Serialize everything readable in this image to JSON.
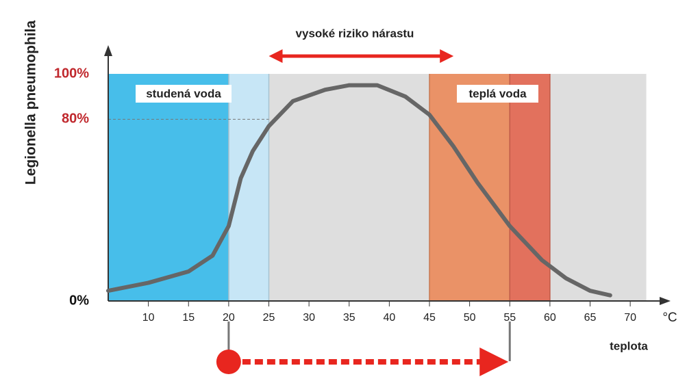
{
  "chart_data": {
    "type": "line",
    "title": "vysoké riziko nárastu",
    "y_label": "Legionella pneumophila",
    "x_label": "teplota",
    "x_unit": "°C",
    "x": [
      5,
      10,
      15,
      18,
      20,
      21.5,
      23,
      25,
      28,
      32,
      35,
      38.5,
      42,
      45,
      48,
      51,
      55,
      59,
      62,
      65,
      67.5
    ],
    "values": [
      4.5,
      8,
      13,
      20,
      33,
      54,
      66,
      77,
      88,
      93,
      95,
      95,
      90,
      82,
      68,
      52,
      33,
      18,
      10,
      4.5,
      2.5
    ],
    "color": "#666666",
    "xlim": [
      5,
      75
    ],
    "xticks": [
      10,
      15,
      20,
      25,
      30,
      35,
      40,
      45,
      50,
      55,
      60,
      65,
      70
    ],
    "ylim": [
      0,
      110
    ],
    "yticks": [
      {
        "value": 0,
        "label": "0%"
      },
      {
        "value": 80,
        "label": "80%"
      },
      {
        "value": 100,
        "label": "100%"
      }
    ],
    "ytick_colors": [
      "#111111",
      "#c0282d",
      "#c0282d"
    ],
    "reference_line": 80,
    "regions": [
      {
        "from": 25,
        "to": 72,
        "color": "#dcdcdc"
      },
      {
        "from": 5,
        "to": 20,
        "color": "#3dbbe9",
        "label": "studená voda"
      },
      {
        "from": 20,
        "to": 25,
        "color": "#c4e5f6"
      },
      {
        "from": 45,
        "to": 55,
        "color": "#ea8d60",
        "label": "teplá voda"
      },
      {
        "from": 55,
        "to": 60,
        "color": "#e26a55"
      }
    ],
    "high_risk_range": [
      25,
      48
    ],
    "span": [
      20,
      55
    ]
  }
}
